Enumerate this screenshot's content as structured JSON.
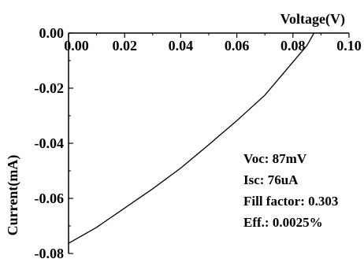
{
  "chart_data": {
    "type": "line",
    "title": "",
    "xlabel": "Voltage(V)",
    "ylabel": "Current(mA)",
    "xlim": [
      0,
      0.1
    ],
    "ylim": [
      -0.08,
      0.0
    ],
    "x_ticks": [
      "0.00",
      "0.02",
      "0.04",
      "0.06",
      "0.08",
      "0.10"
    ],
    "y_ticks": [
      "0.00",
      "-0.02",
      "-0.04",
      "-0.06",
      "-0.08"
    ],
    "x_tick_values": [
      0,
      0.02,
      0.04,
      0.06,
      0.08,
      0.1
    ],
    "y_tick_values": [
      0,
      -0.02,
      -0.04,
      -0.06,
      -0.08
    ],
    "grid": false,
    "series": [
      {
        "color": "#000000",
        "x": [
          0.0,
          0.01,
          0.02,
          0.03,
          0.04,
          0.05,
          0.06,
          0.07,
          0.075,
          0.08,
          0.085,
          0.0875
        ],
        "y": [
          -0.0763,
          -0.0705,
          -0.0635,
          -0.0565,
          -0.049,
          -0.0405,
          -0.0318,
          -0.0225,
          -0.0165,
          -0.0105,
          -0.0045,
          0.0
        ]
      }
    ],
    "annotations": [
      "Voc: 87mV",
      "Isc: 76uA",
      "Fill factor: 0.303",
      "Eff.: 0.0025%"
    ]
  }
}
